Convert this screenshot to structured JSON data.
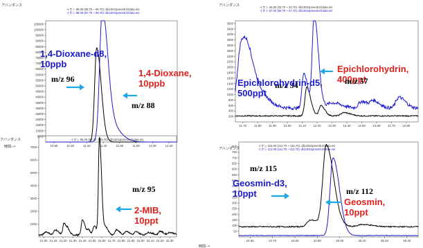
{
  "colors": {
    "black": "#000000",
    "blue": "#1a1acc",
    "red": "#e0201c",
    "arrow": "#1aa8e6",
    "frame": "#555555"
  },
  "chart_data": [
    {
      "type": "line",
      "top_label": "アバンダンス",
      "header": [
        "イオン 96.00 (95.70 ~ 96.70): db1301spme45.D\\data.ms",
        "イオン 88.00 (87.70 ~ 88.70): db1301spme45.D\\data.ms"
      ],
      "x_ticks": [
        "10.80",
        "11.00",
        "11.20",
        "11.40",
        "11.60",
        "11.80",
        "12.00",
        "12.20"
      ],
      "y_ticks": [
        "5000",
        "10000",
        "15000",
        "20000",
        "25000",
        "30000",
        "35000",
        "40000",
        "45000",
        "50000",
        "55000",
        "60000",
        "65000",
        "70000",
        "75000",
        "80000",
        "85000",
        "90000",
        "95000",
        "100000",
        "105000"
      ],
      "xlim": [
        10.7,
        12.3
      ],
      "ylim": [
        0,
        108000
      ],
      "series": [
        {
          "color": "#000000",
          "peaks": [
            [
              11.32,
              84000,
              0.025
            ]
          ],
          "noise": 80
        },
        {
          "color": "#1a1acc",
          "peaks": [
            [
              11.385,
              105000,
              0.03
            ],
            [
              11.45,
              18000,
              0.06
            ]
          ],
          "noise": 80
        }
      ],
      "annotations": [
        {
          "lines": [
            "1,4-Dioxane-d8,",
            "10ppb"
          ],
          "color": "blue",
          "size": 13
        },
        {
          "lines": [
            "m/z 96"
          ],
          "color": "black",
          "size": 12
        },
        {
          "lines": [
            "1,4-Dioxane,",
            "10ppb"
          ],
          "color": "red",
          "size": 13
        },
        {
          "lines": [
            "m/z 88"
          ],
          "color": "black",
          "size": 12
        }
      ]
    },
    {
      "type": "line",
      "top_label": "アバンダンス",
      "header": [
        "イオン 34.00 (33.70 ~ 34.70): db1301spme45.D\\data.ms",
        "イオン 57.00 (56.70 ~ 57.70): db1301spme45.D\\data.ms"
      ],
      "x_ticks": [
        "11.70",
        "11.80",
        "11.90",
        "12.00",
        "12.10",
        "12.20",
        "12.30",
        "12.40",
        "12.50",
        "12.60",
        "12.70",
        "12.80"
      ],
      "y_ticks": [
        "200",
        "400",
        "600",
        "800",
        "1000",
        "1200",
        "1400",
        "1600",
        "1800",
        "2000",
        "2200",
        "2400",
        "2600",
        "2800",
        "3000",
        "3200",
        "3400",
        "3600"
      ],
      "xlim": [
        11.65,
        12.88
      ],
      "ylim": [
        0,
        3700
      ],
      "series": [
        {
          "color": "#000000",
          "base": 220,
          "peaks": [
            [
              12.13,
              1050,
              0.012
            ],
            [
              12.225,
              380,
              0.012
            ],
            [
              12.38,
              120,
              0.02
            ]
          ],
          "noise": 40
        },
        {
          "color": "#1a1acc",
          "base": 500,
          "peaks": [
            [
              11.69,
              2200,
              0.025
            ],
            [
              11.75,
              900,
              0.04
            ],
            [
              12.11,
              1300,
              0.012
            ],
            [
              12.18,
              3350,
              0.013
            ],
            [
              12.3,
              200,
              0.03
            ],
            [
              12.5,
              250,
              0.02
            ],
            [
              12.58,
              250,
              0.02
            ],
            [
              12.75,
              400,
              0.02
            ]
          ],
          "noise": 120
        }
      ],
      "annotations": [
        {
          "lines": [
            "Epichlorohydrin,",
            "400ppt"
          ],
          "color": "red",
          "size": 13
        },
        {
          "lines": [
            "m/z 34"
          ],
          "color": "black",
          "size": 12
        },
        {
          "lines": [
            "Epichlorohydrin-d5,",
            "500ppt"
          ],
          "color": "blue",
          "size": 13
        },
        {
          "lines": [
            "m/z 57"
          ],
          "color": "black",
          "size": 12
        }
      ]
    },
    {
      "type": "line",
      "top_label": "アバンダンス",
      "side_label": "時間-->",
      "header": [
        "イオン 95.00 (94.70 ~ 95.70): db1301spme45.D\\data.ms"
      ],
      "x_ticks": [
        "21.00",
        "21.10",
        "21.20",
        "21.30",
        "21.40",
        "21.50",
        "21.60",
        "21.70",
        "21.80",
        "21.90",
        "22.00",
        "22.10",
        "22.20",
        "22.30"
      ],
      "y_ticks": [
        "1000",
        "2000",
        "3000",
        "4000",
        "5000",
        "6000",
        "7000"
      ],
      "xlim": [
        20.95,
        22.37
      ],
      "ylim": [
        0,
        7900
      ],
      "series": [
        {
          "color": "#000000",
          "base": 150,
          "peaks": [
            [
              21.02,
              250,
              0.015
            ],
            [
              21.12,
              400,
              0.015
            ],
            [
              21.21,
              900,
              0.012
            ],
            [
              21.25,
              300,
              0.01
            ],
            [
              21.4,
              1200,
              0.012
            ],
            [
              21.46,
              400,
              0.01
            ],
            [
              21.52,
              700,
              0.012
            ],
            [
              21.575,
              7600,
              0.01
            ],
            [
              21.64,
              600,
              0.012
            ],
            [
              21.75,
              400,
              0.015
            ],
            [
              21.85,
              300,
              0.015
            ],
            [
              21.95,
              250,
              0.015
            ],
            [
              22.08,
              200,
              0.02
            ],
            [
              22.2,
              300,
              0.015
            ],
            [
              22.3,
              200,
              0.02
            ]
          ],
          "noise": 100
        }
      ],
      "annotations": [
        {
          "lines": [
            "m/z 95"
          ],
          "color": "black",
          "size": 12
        },
        {
          "lines": [
            "2-MIB,",
            "10ppt"
          ],
          "color": "red",
          "size": 13
        }
      ]
    },
    {
      "type": "line",
      "top_label": "アバンダンス",
      "bottom_label": "時間-->",
      "header": [
        "イオン 115.00 (114.70 ~ 115.70): db1301spme45.D\\data.ms",
        "イオン 112.00 (111.70 ~ 112.70): db1301spme45.D\\data.ms"
      ],
      "x_ticks": [
        "24.60",
        "24.70",
        "24.80",
        "24.90",
        "25.00",
        "25.10",
        "25.20",
        "25.30"
      ],
      "y_ticks": [
        "50",
        "100",
        "150",
        "200",
        "250",
        "300",
        "350",
        "400",
        "450",
        "500",
        "550",
        "600",
        "650",
        "700",
        "750",
        "800"
      ],
      "xlim": [
        24.55,
        25.35
      ],
      "ylim": [
        0,
        840
      ],
      "series": [
        {
          "color": "#000000",
          "base": 90,
          "peaks": [
            [
              24.94,
              720,
              0.015
            ],
            [
              24.87,
              60,
              0.015
            ],
            [
              25.1,
              20,
              0.02
            ]
          ],
          "noise": 10
        },
        {
          "color": "#1a1acc",
          "base": 12,
          "peaks": [
            [
              24.97,
              690,
              0.013
            ]
          ],
          "noise": 5
        }
      ],
      "annotations": [
        {
          "lines": [
            "m/z 115"
          ],
          "color": "black",
          "size": 12
        },
        {
          "lines": [
            "Geosmin-d3,",
            "10ppt"
          ],
          "color": "blue",
          "size": 13
        },
        {
          "lines": [
            "m/z 112"
          ],
          "color": "black",
          "size": 12
        },
        {
          "lines": [
            "Geosmin,",
            "10ppt"
          ],
          "color": "red",
          "size": 13
        }
      ]
    }
  ]
}
